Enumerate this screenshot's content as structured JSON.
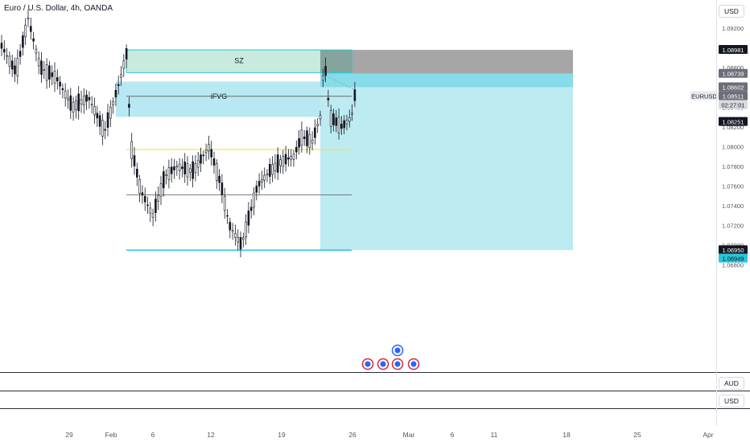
{
  "header": {
    "symbol_title": "Euro / U.S. Dollar, 4h, OANDA",
    "currency": "USD"
  },
  "panes": {
    "aud_label": "AUD",
    "usd_label": "USD"
  },
  "colors": {
    "candle": "#131722",
    "zone_sz": "#c8ebdd",
    "zone_ifvg": "#b8e9f2",
    "zone_gray": "#a6a6a6",
    "zone_target": "#bdebf2",
    "zone_stop": "#86dce8",
    "cyan_line": "#26c6da",
    "yellow_line": "#f5e33a",
    "label_dark": "#131722",
    "label_gray": "#9598a1",
    "label_cyan": "#26c6da"
  },
  "chart_data": {
    "type": "candlestick",
    "symbol": "EURUSD",
    "timeframe": "4h",
    "x_ticks": [
      "29",
      "Feb",
      "6",
      "12",
      "19",
      "26",
      "Mar",
      "6",
      "11",
      "18",
      "25",
      "Apr"
    ],
    "y_ticks": [
      "1.09200",
      "1.08800",
      "1.08400",
      "1.08200",
      "1.08000",
      "1.07800",
      "1.07600",
      "1.07400",
      "1.07200",
      "1.07000",
      "1.06800"
    ],
    "ylim": [
      1.0675,
      1.0935
    ],
    "price_labels": [
      {
        "text": "1.08981",
        "price": 1.08981,
        "style": "dark"
      },
      {
        "text": "1.08739",
        "price": 1.08739,
        "style": "gray"
      },
      {
        "text": "1.08602",
        "price": 1.08602,
        "style": "gray"
      },
      {
        "text": "1.08511",
        "price": 1.08511,
        "style": "gray"
      },
      {
        "text": "02:27:01",
        "price": 1.08421,
        "style": "light"
      },
      {
        "text": "1.08251",
        "price": 1.08251,
        "style": "dark"
      },
      {
        "text": "1.06950",
        "price": 1.0695,
        "style": "dark"
      },
      {
        "text": "1.06949",
        "price": 1.06865,
        "style": "cyan"
      }
    ],
    "symbol_tag": "EURUSD",
    "annotations": [
      "SZ",
      "iFVG"
    ],
    "zones": [
      {
        "name": "SZ",
        "top": 1.0898,
        "bottom": 1.0875
      },
      {
        "name": "iFVG",
        "top": 1.0866,
        "bottom": 1.083
      },
      {
        "name": "short-stop",
        "top": 1.0898,
        "bottom": 1.0874
      },
      {
        "name": "short-risk",
        "top": 1.0874,
        "bottom": 1.086
      },
      {
        "name": "short-target",
        "top": 1.086,
        "bottom": 1.0695
      }
    ],
    "levels": [
      {
        "name": "ifvg-mid",
        "price": 1.0851
      },
      {
        "name": "yellow",
        "price": 1.0797
      },
      {
        "name": "mid",
        "price": 1.0751
      },
      {
        "name": "range-low",
        "price": 1.0695
      }
    ],
    "candles": []
  }
}
